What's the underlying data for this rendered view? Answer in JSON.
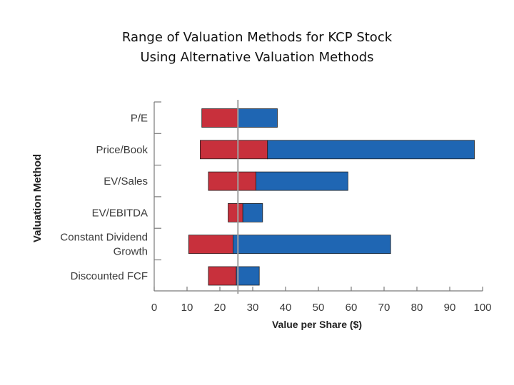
{
  "chart_data": {
    "type": "bar",
    "orientation": "horizontal",
    "stacked": "floating-range",
    "title": "Range of Valuation Methods for KCP Stock",
    "subtitle": "Using Alternative Valuation Methods",
    "xlabel": "Value per Share ($)",
    "ylabel": "Valuation Method",
    "xlim": [
      0,
      100
    ],
    "xticks": [
      0,
      10,
      20,
      30,
      40,
      50,
      60,
      70,
      80,
      90,
      100
    ],
    "reference_line": 25.5,
    "categories": [
      [
        "P/E"
      ],
      [
        "Price/Book"
      ],
      [
        "EV/Sales"
      ],
      [
        "EV/EBITDA"
      ],
      [
        "Constant Dividend",
        "Growth"
      ],
      [
        "Discounted FCF"
      ]
    ],
    "ranges": [
      {
        "low": 14.5,
        "mid": 25.5,
        "high": 37.5
      },
      {
        "low": 14,
        "mid": 34.5,
        "high": 97.5
      },
      {
        "low": 16.5,
        "mid": 31,
        "high": 59
      },
      {
        "low": 22.5,
        "mid": 27,
        "high": 33
      },
      {
        "low": 10.5,
        "mid": 24,
        "high": 72
      },
      {
        "low": 16.5,
        "mid": 25,
        "high": 32
      }
    ],
    "colors": {
      "low_segment": "#c8303c",
      "high_segment": "#1f66b3",
      "reference": "#a0a0a0",
      "axis": "#7a7a7a"
    }
  }
}
